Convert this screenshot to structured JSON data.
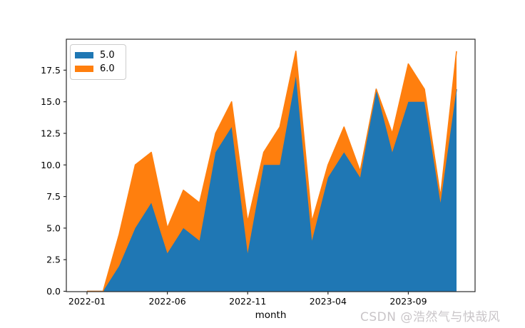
{
  "figure": {
    "background": "#ffffff"
  },
  "watermark_text": "CSDN @浩然气与快哉风",
  "chart_data": {
    "type": "area",
    "stacked": true,
    "title": "",
    "xlabel": "month",
    "ylabel": "",
    "grid": false,
    "legend": {
      "position": "upper left"
    },
    "ylim": [
      0,
      19.95
    ],
    "yticks": [
      0.0,
      2.5,
      5.0,
      7.5,
      10.0,
      12.5,
      15.0,
      17.5
    ],
    "ytick_labels": [
      "0.0",
      "2.5",
      "5.0",
      "7.5",
      "10.0",
      "12.5",
      "15.0",
      "17.5"
    ],
    "xtick_labels": [
      "2022-01",
      "2022-06",
      "2022-11",
      "2023-04",
      "2023-09"
    ],
    "x": [
      "2022-01",
      "2022-02",
      "2022-03",
      "2022-04",
      "2022-05",
      "2022-06",
      "2022-07",
      "2022-08",
      "2022-09",
      "2022-10",
      "2022-11",
      "2022-12",
      "2023-01",
      "2023-02",
      "2023-03",
      "2023-04",
      "2023-05",
      "2023-06",
      "2023-07",
      "2023-08",
      "2023-09",
      "2023-10",
      "2023-11",
      "2023-12"
    ],
    "series": [
      {
        "name": "5.0",
        "color": "#1f77b4",
        "values": [
          0,
          0,
          2,
          5,
          7,
          3,
          5,
          4,
          11,
          13,
          3,
          10,
          10,
          17,
          4,
          9,
          11,
          9,
          16,
          11,
          15,
          15,
          7,
          16
        ]
      },
      {
        "name": "6.0",
        "color": "#ff7f0e",
        "values": [
          0,
          0,
          2.5,
          5,
          4,
          2,
          3,
          3,
          1.5,
          2,
          2.5,
          1,
          3,
          2,
          1.5,
          1,
          2,
          0.5,
          0,
          1.5,
          3,
          1,
          0.5,
          3
        ]
      }
    ]
  }
}
